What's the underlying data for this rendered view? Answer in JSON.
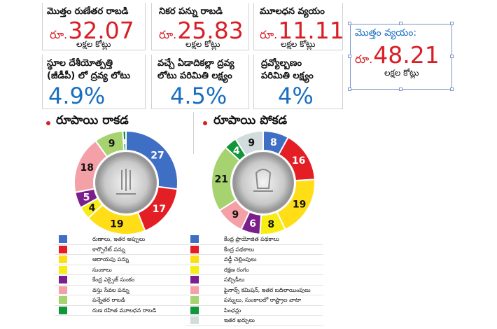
{
  "stats": [
    {
      "title": "మొత్తం రుణేతర రాబడి",
      "prefix": "రూ.",
      "value": "32.07",
      "unit": "లక్షల కోట్లు"
    },
    {
      "title": "నికర పన్ను రాబడి",
      "prefix": "రూ.",
      "value": "25.83",
      "unit": "లక్షల కోట్లు"
    },
    {
      "title": "మూలధన వ్యయం",
      "prefix": "రూ.",
      "value": "11.11",
      "unit": "లక్షల కోట్లు"
    }
  ],
  "total": {
    "title": "మొత్తం వ్యయం:",
    "prefix": "రూ.",
    "value": "48.21",
    "unit": "లక్షల కోట్లు"
  },
  "targets": [
    {
      "line1": "స్థూల దేశీయోత్పత్తి",
      "line2": "(జీడీపీ) లో ద్రవ్య లోటు",
      "value": "4.9%"
    },
    {
      "line1": "వచ్చే ఏడాదికల్లా ద్రవ్య",
      "line2": "లోటు పరిమితి లక్ష్యం",
      "value": "4.5%"
    },
    {
      "line1": "ద్రవ్యోల్బణం",
      "line2": "పరిమితి లక్ష్యం",
      "value": "4%"
    }
  ],
  "sections": {
    "income": "రూపాయి రాకడ",
    "expense": "రూపాయి పోకడ"
  },
  "chart_data": [
    {
      "type": "pie",
      "title": "రూపాయి రాకడ",
      "categories": [
        "రుణాలు, ఇతర అప్పులు",
        "కార్పొరేట్ పన్ను",
        "ఆదాయపు పన్ను",
        "సుంకాలు",
        "కేంద్ర ఎక్సైజ్ సుంకం",
        "వస్తు సేవల పన్ను",
        "పన్నేతర రాబడి",
        "రుణ రహిత మూలధన రాబడి"
      ],
      "values": [
        27,
        17,
        19,
        4,
        5,
        18,
        9,
        1
      ],
      "colors": [
        "#3f6fc4",
        "#e31e24",
        "#ffde17",
        "#f7ec13",
        "#7b1f8c",
        "#f4a0a7",
        "#a6d26f",
        "#11963b"
      ]
    },
    {
      "type": "pie",
      "title": "రూపాయి పోకడ",
      "categories": [
        "కేంద్ర ప్రాయోజిత పథకాలు",
        "కేంద్ర పథకాలు",
        "వడ్డీ చెల్లింపులు",
        "రక్షణ రంగం",
        "సబ్సిడీలు",
        "ఫైనాన్స్ కమిషన్, ఇతర బదిలాయింపులు",
        "పన్నులు, సుంకాలలో రాష్ట్రాల వాటా",
        "పింఛన్లు",
        "ఇతర ఖర్చులు"
      ],
      "values": [
        8,
        16,
        19,
        8,
        6,
        9,
        21,
        4,
        9
      ],
      "colors": [
        "#3f6fc4",
        "#e31e24",
        "#ffde17",
        "#f7ec13",
        "#7b1f8c",
        "#f4a0a7",
        "#a6d26f",
        "#11963b",
        "#d2dcdc"
      ]
    }
  ]
}
